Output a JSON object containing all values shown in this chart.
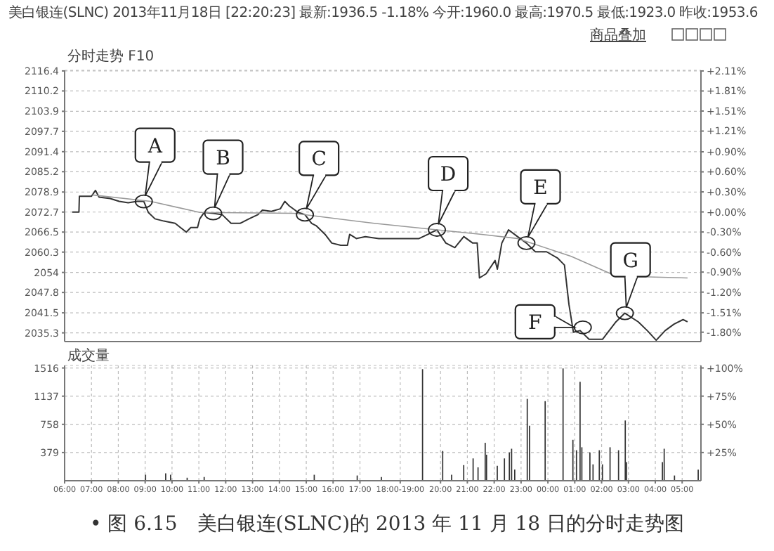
{
  "chart_data": [
    {
      "type": "line",
      "title": "美白银连(SLNC) 2013年11月18日 [22:20:23] 最新:1936.5 -1.18% 今开:1960.0 最高:1970.5 最低:1923.0 昨收:1953.6",
      "subtitle": "分时走势 F10",
      "series": [
        {
          "color": "#333333",
          "x": [
            "2013-11-18T06:17",
            "2013-11-18T06:32",
            "2013-11-18T06:33",
            "2013-11-18T07:00",
            "2013-11-18T07:09",
            "2013-11-18T07:17",
            "2013-11-18T07:42",
            "2013-11-18T08:02",
            "2013-11-18T08:22",
            "2013-11-18T08:42",
            "2013-11-18T08:57",
            "2013-11-18T09:07",
            "2013-11-18T09:22",
            "2013-11-18T09:42",
            "2013-11-18T10:07",
            "2013-11-18T10:32",
            "2013-11-18T10:42",
            "2013-11-18T10:57",
            "2013-11-18T11:02",
            "2013-11-18T11:12",
            "2013-11-18T11:32",
            "2013-11-18T11:52",
            "2013-11-18T12:12",
            "2013-11-18T12:32",
            "2013-11-18T12:52",
            "2013-11-18T13:12",
            "2013-11-18T13:22",
            "2013-11-18T13:42",
            "2013-11-18T14:02",
            "2013-11-18T14:12",
            "2013-11-18T14:22",
            "2013-11-18T14:42",
            "2013-11-18T14:57",
            "2013-11-18T15:12",
            "2013-11-18T15:22",
            "2013-11-18T15:42",
            "2013-11-18T15:57",
            "2013-11-18T16:17",
            "2013-11-18T16:32",
            "2013-11-18T16:37",
            "2013-11-18T16:52",
            "2013-11-18T17:12",
            "2013-11-18T17:42",
            "2013-11-18T19:12",
            "2013-11-18T19:32",
            "2013-11-18T19:52",
            "2013-11-18T20:12",
            "2013-11-18T20:32",
            "2013-11-18T20:52",
            "2013-11-18T21:12",
            "2013-11-18T21:22",
            "2013-11-18T21:27",
            "2013-11-18T21:42",
            "2013-11-18T22:02",
            "2013-11-18T22:07",
            "2013-11-18T22:17",
            "2013-11-18T22:32",
            "2013-11-18T22:52",
            "2013-11-18T23:12",
            "2013-11-18T23:32",
            "2013-11-18T23:57",
            "2013-11-19T00:22",
            "2013-11-19T00:37",
            "2013-11-19T00:47",
            "2013-11-19T00:57",
            "2013-11-19T01:12",
            "2013-11-19T01:32",
            "2013-11-19T02:02",
            "2013-11-19T02:32",
            "2013-11-19T02:52",
            "2013-11-19T03:22",
            "2013-11-19T03:42",
            "2013-11-19T04:02",
            "2013-11-19T04:22",
            "2013-11-19T04:42",
            "2013-11-19T05:02",
            "2013-11-19T05:12"
          ],
          "values": [
            2072.7,
            2072.7,
            2077.6,
            2077.6,
            2079.4,
            2077.3,
            2076.9,
            2076.0,
            2075.6,
            2076.0,
            2076.0,
            2072.6,
            2070.6,
            2069.9,
            2069.2,
            2066.5,
            2067.9,
            2067.9,
            2070.6,
            2072.6,
            2072.3,
            2071.9,
            2069.2,
            2069.2,
            2070.6,
            2071.9,
            2073.3,
            2072.9,
            2073.7,
            2076.0,
            2074.6,
            2072.6,
            2071.9,
            2069.2,
            2068.5,
            2065.8,
            2063.1,
            2062.4,
            2062.4,
            2065.8,
            2064.5,
            2065.1,
            2064.5,
            2064.5,
            2065.8,
            2067.2,
            2063.1,
            2061.7,
            2065.1,
            2063.1,
            2063.1,
            2052.3,
            2053.6,
            2057.7,
            2055.0,
            2063.1,
            2067.2,
            2065.1,
            2063.1,
            2060.4,
            2060.4,
            2058.4,
            2056.3,
            2044.1,
            2035.5,
            2036.0,
            2033.3,
            2033.3,
            2038.7,
            2041.4,
            2038.7,
            2036.0,
            2033.0,
            2036.0,
            2038.0,
            2039.4,
            2038.7
          ]
        },
        {
          "color": "#999999",
          "x": [
            "2013-11-18T07:02",
            "2013-11-18T09:12",
            "2013-11-18T11:02",
            "2013-11-18T14:32",
            "2013-11-18T17:32",
            "2013-11-18T19:52",
            "2013-11-18T21:32",
            "2013-11-18T22:52",
            "2013-11-19T00:52",
            "2013-11-19T02:32",
            "2013-11-19T05:12"
          ],
          "values": [
            2078.0,
            2076.0,
            2072.6,
            2072.3,
            2069.2,
            2067.2,
            2065.8,
            2064.5,
            2059.0,
            2052.9,
            2052.3
          ]
        }
      ],
      "xlim": [
        "2013-11-18T06:00",
        "2013-11-19T05:42"
      ],
      "xticks": [
        {
          "value": "2013-11-18T06:00",
          "label": null
        },
        {
          "value": "2013-11-18T07:00",
          "label": null
        },
        {
          "value": "2013-11-18T08:00",
          "label": null
        },
        {
          "value": "2013-11-18T09:00",
          "label": null
        },
        {
          "value": "2013-11-18T10:00",
          "label": null
        },
        {
          "value": "2013-11-18T11:00",
          "label": null
        },
        {
          "value": "2013-11-18T12:00",
          "label": null
        },
        {
          "value": "2013-11-18T13:00",
          "label": null
        },
        {
          "value": "2013-11-18T14:00",
          "label": null
        },
        {
          "value": "2013-11-18T15:00",
          "label": null
        },
        {
          "value": "2013-11-18T16:00",
          "label": null
        },
        {
          "value": "2013-11-18T17:00",
          "label": null
        },
        {
          "value": "2013-11-18T18:30",
          "label": null
        },
        {
          "value": "2013-11-18T20:00",
          "label": null
        },
        {
          "value": "2013-11-18T21:00",
          "label": null
        },
        {
          "value": "2013-11-18T22:00",
          "label": null
        },
        {
          "value": "2013-11-18T23:00",
          "label": null
        },
        {
          "value": "2013-11-19T00:00",
          "label": null
        },
        {
          "value": "2013-11-19T01:00",
          "label": null
        },
        {
          "value": "2013-11-19T02:00",
          "label": null
        },
        {
          "value": "2013-11-19T03:00",
          "label": null
        },
        {
          "value": "2013-11-19T04:00",
          "label": null
        },
        {
          "value": "2013-11-19T05:00",
          "label": null
        }
      ],
      "ylim": [
        2032.6,
        2116.6
      ],
      "yticks": [
        2035.3,
        2041.5,
        2047.8,
        2054.0,
        2060.3,
        2066.5,
        2072.7,
        2078.9,
        2085.2,
        2091.4,
        2097.7,
        2103.9,
        2110.2,
        2116.4
      ],
      "y2lim": [
        -1.94,
        2.12
      ],
      "y2ticks": [
        {
          "value": -1.8,
          "label": "-1.80%"
        },
        {
          "value": -1.51,
          "label": "-1.51%"
        },
        {
          "value": -1.2,
          "label": "-1.20%"
        },
        {
          "value": -0.9,
          "label": "-0.90%"
        },
        {
          "value": -0.6,
          "label": "-0.60%"
        },
        {
          "value": -0.3,
          "label": "-0.30%"
        },
        {
          "value": 0,
          "label": "+0.00%"
        },
        {
          "value": 0.3,
          "label": "+0.30%"
        },
        {
          "value": 0.6,
          "label": "+0.60%"
        },
        {
          "value": 0.9,
          "label": "+0.90%"
        },
        {
          "value": 1.21,
          "label": "+1.21%"
        },
        {
          "value": 1.51,
          "label": "+1.51%"
        },
        {
          "value": 1.81,
          "label": "+1.81%"
        },
        {
          "value": 2.11,
          "label": "+2.11%"
        }
      ],
      "grid": true,
      "marker": "none",
      "tick_labels": "y",
      "annotations": [
        {
          "text": "A",
          "x": "2013-11-18T08:57",
          "y": 2076.0
        },
        {
          "text": "B",
          "x": "2013-11-18T11:32",
          "y": 2072.3
        },
        {
          "text": "C",
          "x": "2013-11-18T14:57",
          "y": 2071.9
        },
        {
          "text": "D",
          "x": "2013-11-18T19:52",
          "y": 2067.2
        },
        {
          "text": "E",
          "x": "2013-11-18T23:12",
          "y": 2063.1
        },
        {
          "text": "F",
          "x": "2013-11-19T01:18",
          "y": 2037.0
        },
        {
          "text": "G",
          "x": "2013-11-19T02:52",
          "y": 2041.4
        },
        "商品叠加",
        "• 图 6.15　美白银连(SLNC)的 2013 年 11 月 18 日的分时走势图"
      ]
    },
    {
      "type": "bar",
      "title": "成交量",
      "color": "#333333",
      "x": [
        "2013-11-18T09:01",
        "2013-11-18T09:46",
        "2013-11-18T09:57",
        "2013-11-18T10:34",
        "2013-11-18T11:12",
        "2013-11-18T15:18",
        "2013-11-18T16:54",
        "2013-11-18T17:48",
        "2013-11-18T19:20",
        "2013-11-18T20:05",
        "2013-11-18T20:25",
        "2013-11-18T20:52",
        "2013-11-18T21:13",
        "2013-11-18T21:24",
        "2013-11-18T21:40",
        "2013-11-18T21:43",
        "2013-11-18T22:07",
        "2013-11-18T22:23",
        "2013-11-18T22:34",
        "2013-11-18T22:39",
        "2013-11-18T22:46",
        "2013-11-18T23:14",
        "2013-11-18T23:19",
        "2013-11-18T23:54",
        "2013-11-19T00:34",
        "2013-11-19T00:56",
        "2013-11-19T01:04",
        "2013-11-19T01:12",
        "2013-11-19T01:16",
        "2013-11-19T01:34",
        "2013-11-19T01:41",
        "2013-11-19T01:55",
        "2013-11-19T02:02",
        "2013-11-19T02:19",
        "2013-11-19T02:38",
        "2013-11-19T02:53",
        "2013-11-19T02:56",
        "2013-11-19T04:16",
        "2013-11-19T04:20",
        "2013-11-19T04:43",
        "2013-11-19T05:36"
      ],
      "values": [
        80,
        100,
        80,
        40,
        50,
        80,
        70,
        50,
        1500,
        400,
        80,
        210,
        300,
        180,
        510,
        350,
        200,
        300,
        380,
        430,
        150,
        1100,
        740,
        1070,
        1510,
        550,
        410,
        1330,
        450,
        380,
        220,
        410,
        220,
        450,
        410,
        810,
        250,
        250,
        430,
        70,
        150
      ],
      "xlim": [
        "2013-11-18T06:00",
        "2013-11-19T05:42"
      ],
      "xticks": [
        {
          "value": "2013-11-18T06:00",
          "label": "06:00"
        },
        {
          "value": "2013-11-18T07:00",
          "label": "07:00"
        },
        {
          "value": "2013-11-18T08:00",
          "label": "08:00"
        },
        {
          "value": "2013-11-18T09:00",
          "label": "09:00"
        },
        {
          "value": "2013-11-18T10:00",
          "label": "10:00"
        },
        {
          "value": "2013-11-18T11:00",
          "label": "11:00"
        },
        {
          "value": "2013-11-18T12:00",
          "label": "12:00"
        },
        {
          "value": "2013-11-18T13:00",
          "label": "13:00"
        },
        {
          "value": "2013-11-18T14:00",
          "label": "14:00"
        },
        {
          "value": "2013-11-18T15:00",
          "label": "15:00"
        },
        {
          "value": "2013-11-18T16:00",
          "label": "16:00"
        },
        {
          "value": "2013-11-18T17:00",
          "label": "17:00"
        },
        {
          "value": "2013-11-18T18:30",
          "label": "18:00-19:00"
        },
        {
          "value": "2013-11-18T20:00",
          "label": "20:00"
        },
        {
          "value": "2013-11-18T21:00",
          "label": "21:00"
        },
        {
          "value": "2013-11-18T22:00",
          "label": "22:00"
        },
        {
          "value": "2013-11-18T23:00",
          "label": "23:00"
        },
        {
          "value": "2013-11-19T00:00",
          "label": "00:00"
        },
        {
          "value": "2013-11-19T01:00",
          "label": "01:00"
        },
        {
          "value": "2013-11-19T02:00",
          "label": "02:00"
        },
        {
          "value": "2013-11-19T03:00",
          "label": "03:00"
        },
        {
          "value": "2013-11-19T04:00",
          "label": "04:00"
        },
        {
          "value": "2013-11-19T05:00",
          "label": "05:00"
        }
      ],
      "ylim": [
        0,
        1550
      ],
      "yticks": [
        379,
        758,
        1137,
        1516
      ],
      "y2lim": [
        0,
        102.2
      ],
      "y2ticks": [
        {
          "value": 25,
          "label": "+25%"
        },
        {
          "value": 50,
          "label": "+50%"
        },
        {
          "value": 75,
          "label": "+75%"
        },
        {
          "value": 100,
          "label": "+100%"
        }
      ],
      "grid": true
    }
  ]
}
